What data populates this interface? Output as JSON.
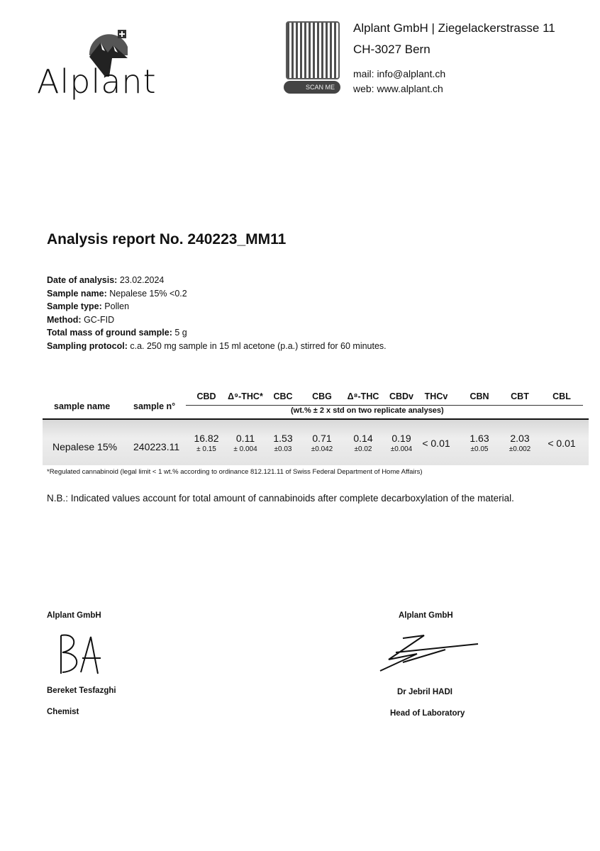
{
  "header": {
    "logo_text": "Alplant",
    "scan_label": "SCAN ME",
    "address_line1": "Alplant GmbH | Ziegelackerstrasse 11",
    "address_line2": "CH-3027 Bern",
    "mail": "mail: info@alplant.ch",
    "web": "web: www.alplant.ch"
  },
  "report": {
    "title": "Analysis report No. 240223_MM11",
    "fields": [
      {
        "label": "Date of analysis:",
        "value": " 23.02.2024"
      },
      {
        "label": "Sample name:",
        "value": " Nepalese 15% <0.2"
      },
      {
        "label": "Sample type:",
        "value": " Pollen"
      },
      {
        "label": "Method:",
        "value": " GC-FID"
      },
      {
        "label": "Total mass of ground sample:",
        "value": " 5 g"
      },
      {
        "label": "Sampling protocol:",
        "value": " c.a. 250 mg sample in 15 ml acetone (p.a.) stirred for 60 minutes."
      }
    ]
  },
  "table": {
    "col_sample_name": "sample name",
    "col_sample_n": "sample n°",
    "cannabinoids": [
      "CBD",
      "Δ⁹-THC*",
      "CBC",
      "CBG",
      "Δ⁸-THC",
      "CBDv",
      "THCv",
      "CBN",
      "CBT",
      "CBL"
    ],
    "units": "(wt.% ± 2 x std on two replicate analyses)",
    "rows": [
      {
        "sample_name": "Nepalese 15%",
        "sample_n": "240223.11",
        "values": [
          {
            "v": "16.82",
            "e": "± 0.15"
          },
          {
            "v": "0.11",
            "e": "± 0.004"
          },
          {
            "v": "1.53",
            "e": "±0.03"
          },
          {
            "v": "0.71",
            "e": "±0.042"
          },
          {
            "v": "0.14",
            "e": "±0.02"
          },
          {
            "v": "0.19",
            "e": "±0.004"
          },
          {
            "v": "< 0.01",
            "e": ""
          },
          {
            "v": "1.63",
            "e": "±0.05"
          },
          {
            "v": "2.03",
            "e": "±0.002"
          },
          {
            "v": "< 0.01",
            "e": ""
          }
        ]
      }
    ],
    "footnote": "*Regulated cannabinoid (legal limit < 1 wt.% according to ordinance 812.121.11 of Swiss Federal Department of Home Affairs)"
  },
  "note": "N.B.: Indicated values account for total amount of cannabinoids after complete decarboxylation of the material.",
  "signatures": [
    {
      "company": "Alplant GmbH",
      "name": "Bereket Tesfazghi",
      "role": "Chemist"
    },
    {
      "company": "Alplant GmbH",
      "name": "Dr Jebril HADI",
      "role": "Head of Laboratory"
    }
  ]
}
